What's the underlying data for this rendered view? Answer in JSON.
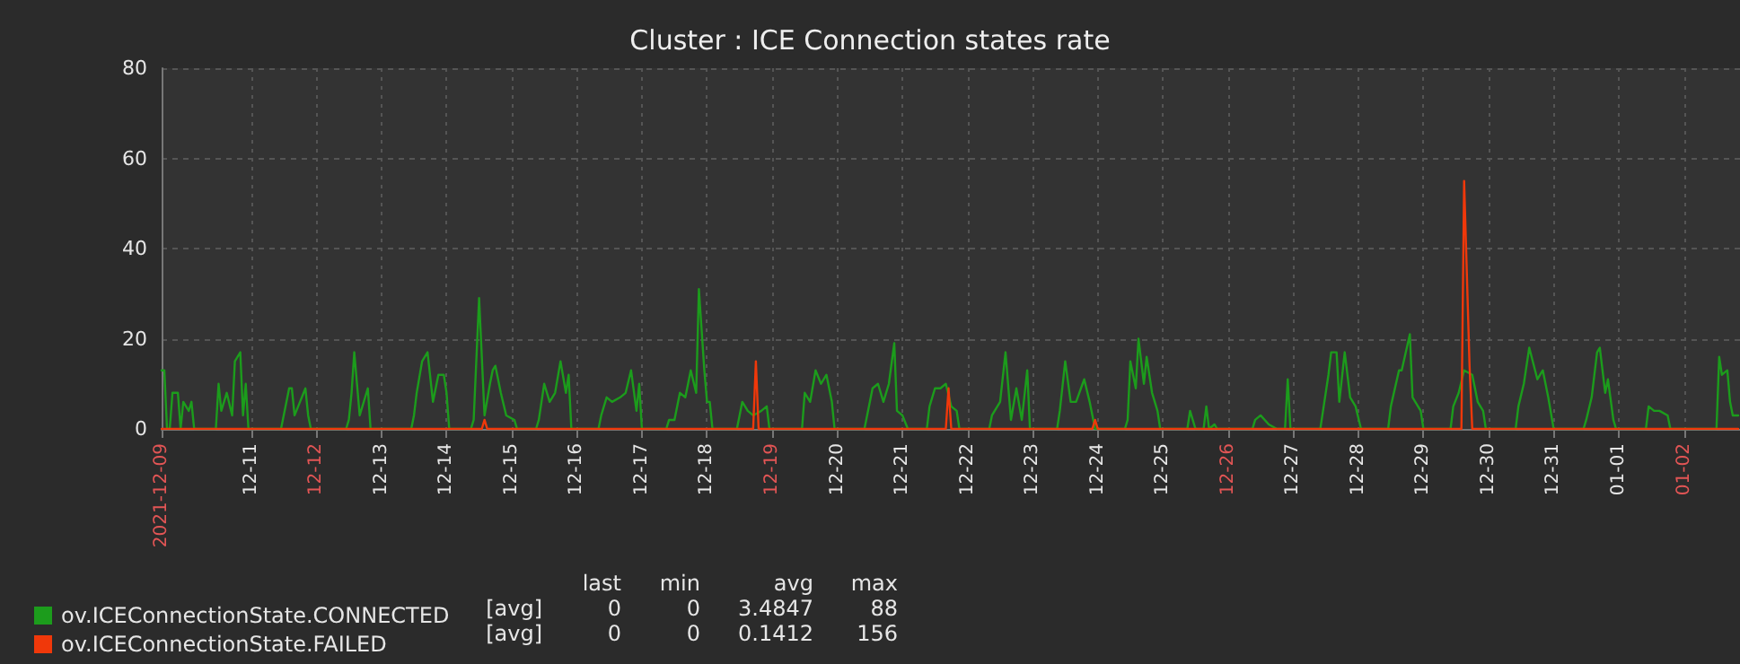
{
  "chart_data": {
    "type": "line",
    "title": "Cluster : ICE Connection states rate",
    "legend": "bottom left",
    "grid": true,
    "marker": "none",
    "ylim": [
      0,
      80
    ],
    "yticks": [
      0,
      20,
      40,
      60,
      80
    ],
    "xlim": [
      "2021-12-09T15:00",
      "2022-01-02T20:40"
    ],
    "xticks": [
      {
        "value": "2021-12-09T15:00",
        "label": "2021-12-09"
      },
      {
        "value": "2021-12-11",
        "label": "12-11"
      },
      {
        "value": "2021-12-12",
        "label": "12-12"
      },
      {
        "value": "2021-12-13",
        "label": "12-13"
      },
      {
        "value": "2021-12-14",
        "label": "12-14"
      },
      {
        "value": "2021-12-15",
        "label": "12-15"
      },
      {
        "value": "2021-12-16",
        "label": "12-16"
      },
      {
        "value": "2021-12-17",
        "label": "12-17"
      },
      {
        "value": "2021-12-18",
        "label": "12-18"
      },
      {
        "value": "2021-12-19",
        "label": "12-19"
      },
      {
        "value": "2021-12-20",
        "label": "12-20"
      },
      {
        "value": "2021-12-21",
        "label": "12-21"
      },
      {
        "value": "2021-12-22",
        "label": "12-22"
      },
      {
        "value": "2021-12-23",
        "label": "12-23"
      },
      {
        "value": "2021-12-24",
        "label": "12-24"
      },
      {
        "value": "2021-12-25",
        "label": "12-25"
      },
      {
        "value": "2021-12-26",
        "label": "12-26"
      },
      {
        "value": "2021-12-27",
        "label": "12-27"
      },
      {
        "value": "2021-12-28",
        "label": "12-28"
      },
      {
        "value": "2021-12-29",
        "label": "12-29"
      },
      {
        "value": "2021-12-30",
        "label": "12-30"
      },
      {
        "value": "2021-12-31",
        "label": "12-31"
      },
      {
        "value": "2022-01-01",
        "label": "01-01"
      },
      {
        "value": "2022-01-02",
        "label": "01-02"
      }
    ],
    "annotations": [
      "last min avg max",
      "[avg] 0 0 3.4847 88",
      "[avg] 0 0 0.1412 156"
    ],
    "series": [
      {
        "name": "ov.ICEConnectionState.CONNECTED",
        "color": "#1c9c1c",
        "x": [
          "2021-12-09T15:00",
          "2021-12-09T16:00",
          "2021-12-09T17:00",
          "2021-12-09T18:00",
          "2021-12-09T19:00",
          "2021-12-09T21:00",
          "2021-12-09T22:00",
          "2021-12-09T23:00",
          "2021-12-10T01:00",
          "2021-12-10T02:00",
          "2021-12-10T03:00",
          "2021-12-10T11:00",
          "2021-12-10T12:00",
          "2021-12-10T13:00",
          "2021-12-10T15:00",
          "2021-12-10T17:00",
          "2021-12-10T18:00",
          "2021-12-10T19:00",
          "2021-12-10T20:00",
          "2021-12-10T21:00",
          "2021-12-10T22:00",
          "2021-12-10T23:00",
          "2021-12-11T11:00",
          "2021-12-11T12:00",
          "2021-12-11T14:00",
          "2021-12-11T15:00",
          "2021-12-11T16:00",
          "2021-12-11T18:00",
          "2021-12-11T20:00",
          "2021-12-11T21:00",
          "2021-12-11T22:00",
          "2021-12-12T11:00",
          "2021-12-12T12:00",
          "2021-12-12T13:00",
          "2021-12-12T14:00",
          "2021-12-12T16:00",
          "2021-12-12T19:00",
          "2021-12-12T20:00",
          "2021-12-13T11:00",
          "2021-12-13T12:00",
          "2021-12-13T13:00",
          "2021-12-13T15:00",
          "2021-12-13T17:00",
          "2021-12-13T19:00",
          "2021-12-13T21:00",
          "2021-12-13T23:00",
          "2021-12-14T00:00",
          "2021-12-14T01:00",
          "2021-12-14T09:00",
          "2021-12-14T10:00",
          "2021-12-14T12:00",
          "2021-12-14T14:00",
          "2021-12-14T16:00",
          "2021-12-14T17:00",
          "2021-12-14T18:00",
          "2021-12-14T20:00",
          "2021-12-14T22:00",
          "2021-12-15T01:00",
          "2021-12-15T02:00",
          "2021-12-15T09:00",
          "2021-12-15T10:00",
          "2021-12-15T12:00",
          "2021-12-15T14:00",
          "2021-12-15T16:00",
          "2021-12-15T18:00",
          "2021-12-15T20:00",
          "2021-12-15T21:00",
          "2021-12-15T22:00",
          "2021-12-16T08:00",
          "2021-12-16T09:00",
          "2021-12-16T11:00",
          "2021-12-16T13:00",
          "2021-12-16T16:00",
          "2021-12-16T18:00",
          "2021-12-16T20:00",
          "2021-12-16T22:00",
          "2021-12-16T23:00",
          "2021-12-17T00:00",
          "2021-12-17T09:00",
          "2021-12-17T10:00",
          "2021-12-17T12:00",
          "2021-12-17T14:00",
          "2021-12-17T16:00",
          "2021-12-17T18:00",
          "2021-12-17T20:00",
          "2021-12-17T21:00",
          "2021-12-17T23:00",
          "2021-12-18T00:00",
          "2021-12-18T01:00",
          "2021-12-18T02:00",
          "2021-12-18T11:00",
          "2021-12-18T12:00",
          "2021-12-18T13:00",
          "2021-12-18T15:00",
          "2021-12-18T17:00",
          "2021-12-18T20:00",
          "2021-12-18T22:00",
          "2021-12-18T23:00",
          "2021-12-19T11:00",
          "2021-12-19T12:00",
          "2021-12-19T14:00",
          "2021-12-19T16:00",
          "2021-12-19T18:00",
          "2021-12-19T20:00",
          "2021-12-19T22:00",
          "2021-12-19T23:00",
          "2021-12-20T10:00",
          "2021-12-20T11:00",
          "2021-12-20T13:00",
          "2021-12-20T15:00",
          "2021-12-20T17:00",
          "2021-12-20T19:00",
          "2021-12-20T21:00",
          "2021-12-20T22:00",
          "2021-12-21T00:00",
          "2021-12-21T02:00",
          "2021-12-21T09:00",
          "2021-12-21T10:00",
          "2021-12-21T12:00",
          "2021-12-21T14:00",
          "2021-12-21T16:00",
          "2021-12-21T18:00",
          "2021-12-21T20:00",
          "2021-12-21T21:00",
          "2021-12-22T08:00",
          "2021-12-22T09:00",
          "2021-12-22T12:00",
          "2021-12-22T14:00",
          "2021-12-22T16:00",
          "2021-12-22T18:00",
          "2021-12-22T20:00",
          "2021-12-22T22:00",
          "2021-12-22T23:00",
          "2021-12-23T09:00",
          "2021-12-23T10:00",
          "2021-12-23T12:00",
          "2021-12-23T14:00",
          "2021-12-23T16:00",
          "2021-12-23T19:00",
          "2021-12-23T21:00",
          "2021-12-23T23:00",
          "2021-12-24T10:00",
          "2021-12-24T11:00",
          "2021-12-24T12:00",
          "2021-12-24T14:00",
          "2021-12-24T15:00",
          "2021-12-24T17:00",
          "2021-12-24T18:00",
          "2021-12-24T20:00",
          "2021-12-24T22:00",
          "2021-12-24T23:00",
          "2021-12-25T09:00",
          "2021-12-25T10:00",
          "2021-12-25T12:00",
          "2021-12-25T15:00",
          "2021-12-25T16:00",
          "2021-12-25T17:00",
          "2021-12-25T19:00",
          "2021-12-25T20:00",
          "2021-12-26T09:00",
          "2021-12-26T10:00",
          "2021-12-26T12:00",
          "2021-12-26T15:00",
          "2021-12-26T18:00",
          "2021-12-26T21:00",
          "2021-12-26T22:00",
          "2021-12-26T23:00",
          "2021-12-27T10:00",
          "2021-12-27T11:00",
          "2021-12-27T13:00",
          "2021-12-27T14:00",
          "2021-12-27T16:00",
          "2021-12-27T17:00",
          "2021-12-27T19:00",
          "2021-12-27T21:00",
          "2021-12-27T23:00",
          "2021-12-28T01:00",
          "2021-12-28T11:00",
          "2021-12-28T12:00",
          "2021-12-28T15:00",
          "2021-12-28T16:00",
          "2021-12-28T19:00",
          "2021-12-28T20:00",
          "2021-12-28T23:00",
          "2021-12-29T00:00",
          "2021-12-29T10:00",
          "2021-12-29T11:00",
          "2021-12-29T13:00",
          "2021-12-29T15:00",
          "2021-12-29T18:00",
          "2021-12-29T20:00",
          "2021-12-29T22:00",
          "2021-12-29T23:00",
          "2021-12-30T10:00",
          "2021-12-30T11:00",
          "2021-12-30T13:00",
          "2021-12-30T15:00",
          "2021-12-30T18:00",
          "2021-12-30T20:00",
          "2021-12-30T22:00",
          "2021-12-31T00:00",
          "2021-12-31T11:00",
          "2021-12-31T12:00",
          "2021-12-31T14:00",
          "2021-12-31T16:00",
          "2021-12-31T17:00",
          "2021-12-31T19:00",
          "2021-12-31T20:00",
          "2021-12-31T22:00",
          "2021-12-31T23:00",
          "2022-01-01T10:00",
          "2022-01-01T11:00",
          "2022-01-01T13:00",
          "2022-01-01T15:00",
          "2022-01-01T18:00",
          "2022-01-01T19:00",
          "2022-01-02T12:00",
          "2022-01-02T13:00",
          "2022-01-02T14:00",
          "2022-01-02T16:00",
          "2022-01-02T17:00",
          "2022-01-02T18:00",
          "2022-01-02T20:00"
        ],
        "values": [
          13,
          13,
          0,
          0,
          8,
          8,
          0,
          6,
          4,
          6,
          0,
          0,
          10,
          4,
          8,
          3,
          15,
          16,
          17,
          3,
          10,
          0,
          0,
          3,
          9,
          9,
          3,
          6,
          9,
          3,
          0,
          0,
          2,
          8,
          17,
          3,
          9,
          0,
          0,
          3,
          8,
          15,
          17,
          6,
          12,
          12,
          8,
          0,
          0,
          2,
          29,
          3,
          10,
          13,
          14,
          8,
          3,
          2,
          0,
          0,
          2,
          10,
          6,
          8,
          15,
          8,
          12,
          0,
          0,
          3,
          7,
          6,
          7,
          8,
          13,
          4,
          10,
          0,
          0,
          2,
          2,
          8,
          7,
          13,
          8,
          31,
          13,
          6,
          6,
          0,
          0,
          3,
          6,
          4,
          3,
          4,
          5,
          0,
          0,
          8,
          6,
          13,
          10,
          12,
          6,
          0,
          0,
          3,
          9,
          10,
          6,
          10,
          19,
          4,
          3,
          0,
          0,
          5,
          9,
          9,
          10,
          5,
          4,
          0,
          0,
          3,
          6,
          17,
          2,
          9,
          2,
          13,
          0,
          0,
          4,
          15,
          6,
          6,
          11,
          6,
          0,
          0,
          2,
          15,
          9,
          20,
          10,
          16,
          8,
          4,
          0,
          0,
          4,
          0,
          0,
          5,
          0,
          1,
          0,
          0,
          2,
          3,
          1,
          0,
          0,
          11,
          0,
          0,
          4,
          12,
          17,
          17,
          6,
          17,
          7,
          5,
          0,
          0,
          5,
          13,
          13,
          21,
          7,
          4,
          0,
          0,
          5,
          8,
          13,
          12,
          6,
          4,
          0,
          0,
          5,
          10,
          18,
          11,
          13,
          7,
          0,
          0,
          2,
          7,
          17,
          18,
          8,
          11,
          2,
          0,
          0,
          5,
          4,
          4,
          3,
          0,
          0,
          16,
          12,
          13,
          6,
          3,
          3
        ]
      },
      {
        "name": "ov.ICEConnectionState.FAILED",
        "color": "#f0380a",
        "x": [
          "2021-12-09T15:00",
          "2021-12-14T13:00",
          "2021-12-14T14:00",
          "2021-12-14T15:00",
          "2021-12-18T17:00",
          "2021-12-18T18:00",
          "2021-12-18T19:00",
          "2021-12-21T16:00",
          "2021-12-21T17:00",
          "2021-12-21T18:00",
          "2021-12-23T22:00",
          "2021-12-23T23:00",
          "2021-12-24T00:00",
          "2021-12-29T14:00",
          "2021-12-29T15:00",
          "2021-12-29T17:00",
          "2021-12-29T18:00",
          "2022-01-02T20:00"
        ],
        "values": [
          0,
          0,
          2,
          0,
          0,
          15,
          0,
          0,
          9,
          0,
          0,
          2,
          0,
          0,
          55,
          14,
          0,
          0
        ]
      }
    ]
  }
}
